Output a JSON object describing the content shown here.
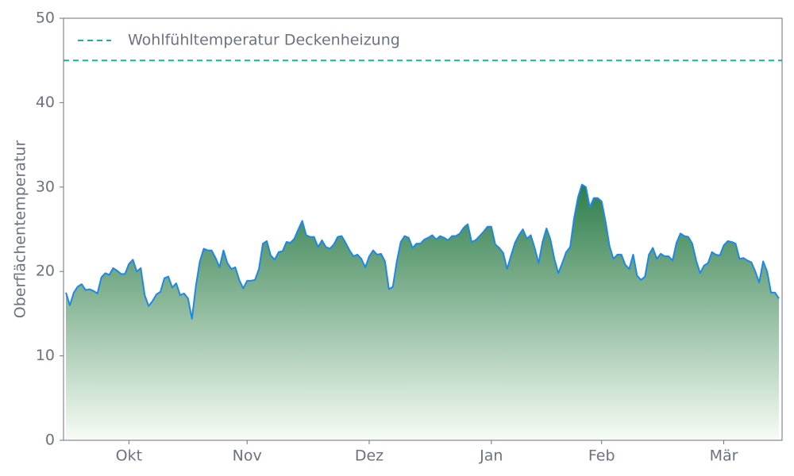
{
  "chart_data": {
    "type": "area",
    "ylabel": "Oberflächentemperatur",
    "ylim": [
      0,
      50
    ],
    "yticks": [
      0,
      10,
      20,
      30,
      40,
      50
    ],
    "grid": false,
    "legend": "upper left",
    "categories": [
      null,
      null,
      null,
      null,
      null,
      null,
      null,
      null,
      null,
      null,
      null,
      null,
      null,
      null,
      null,
      null,
      "Okt",
      null,
      null,
      null,
      null,
      null,
      null,
      null,
      null,
      null,
      null,
      null,
      null,
      null,
      null,
      null,
      null,
      null,
      null,
      null,
      null,
      null,
      null,
      null,
      null,
      null,
      null,
      null,
      null,
      null,
      "Nov",
      null,
      null,
      null,
      null,
      null,
      null,
      null,
      null,
      null,
      null,
      null,
      null,
      null,
      null,
      null,
      null,
      null,
      null,
      null,
      null,
      null,
      null,
      null,
      null,
      null,
      null,
      null,
      null,
      null,
      null,
      "Dez",
      null,
      null,
      null,
      null,
      null,
      null,
      null,
      null,
      null,
      null,
      null,
      null,
      null,
      null,
      null,
      null,
      null,
      null,
      null,
      null,
      null,
      null,
      null,
      null,
      null,
      null,
      null,
      null,
      null,
      null,
      "Jan",
      null,
      null,
      null,
      null,
      null,
      null,
      null,
      null,
      null,
      null,
      null,
      null,
      null,
      null,
      null,
      null,
      null,
      null,
      null,
      null,
      null,
      null,
      null,
      null,
      null,
      null,
      null,
      "Feb",
      null,
      null,
      null,
      null,
      null,
      null,
      null,
      null,
      null,
      null,
      null,
      null,
      null,
      null,
      null,
      null,
      null,
      null,
      null,
      null,
      null,
      null,
      null,
      null,
      null,
      null,
      null,
      null,
      null,
      null,
      "Mär",
      null,
      null,
      null,
      null,
      null,
      null,
      null,
      null,
      null,
      null,
      null,
      null,
      null,
      null
    ],
    "series": [
      {
        "color": "#1e88e5",
        "fill_colors": [
          "#2e7d4a",
          "#f7fcf5"
        ],
        "values": [
          17.5,
          16,
          17.5,
          18.2,
          18.5,
          17.8,
          17.9,
          17.7,
          17.4,
          19.3,
          19.8,
          19.6,
          20.4,
          20.1,
          19.7,
          19.7,
          20.9,
          21.4,
          20,
          20.4,
          17.2,
          15.9,
          16.5,
          17.3,
          17.6,
          19.2,
          19.4,
          18.1,
          18.6,
          17.2,
          17.4,
          16.8,
          14.4,
          18.3,
          21.2,
          22.7,
          22.5,
          22.5,
          21.6,
          20.5,
          22.5,
          21,
          20.3,
          20.5,
          19,
          18,
          18.9,
          18.9,
          19,
          20.3,
          23.3,
          23.6,
          21.9,
          21.4,
          22.3,
          22.4,
          23.5,
          23.4,
          23.9,
          25,
          26,
          24.3,
          24.1,
          24.1,
          22.9,
          23.7,
          22.9,
          22.7,
          23.2,
          24.1,
          24.2,
          23.4,
          22.5,
          21.8,
          22,
          21.5,
          20.5,
          21.8,
          22.5,
          22,
          22.1,
          21.2,
          17.9,
          18.2,
          21.2,
          23.5,
          24.2,
          24,
          22.8,
          23.3,
          23.3,
          23.8,
          24,
          24.3,
          23.8,
          24.2,
          24,
          23.7,
          24.2,
          24.2,
          24.5,
          25.2,
          25.6,
          23.5,
          23.7,
          24.2,
          24.7,
          25.3,
          25.3,
          23.2,
          22.8,
          22.2,
          20.3,
          21.9,
          23.4,
          24.3,
          25,
          23.9,
          24.3,
          22.8,
          21,
          23.5,
          25.1,
          23.8,
          21.5,
          19.8,
          21,
          22.3,
          22.9,
          26.3,
          28.8,
          30.3,
          30,
          27.6,
          28.7,
          28.7,
          28.3,
          25.9,
          23,
          21.5,
          22,
          22,
          20.8,
          20.3,
          22,
          19.5,
          19,
          19.4,
          22,
          22.8,
          21.5,
          22.1,
          21.8,
          21.8,
          21.3,
          23.4,
          24.5,
          24.2,
          24.1,
          23.3,
          21.3,
          19.8,
          20.7,
          21,
          22.3,
          22,
          21.9,
          23.1,
          23.6,
          23.5,
          23.3,
          21.5,
          21.6,
          21.3,
          21.1,
          20,
          18.7,
          21.2,
          20,
          17.5,
          17.5,
          16.8
        ]
      }
    ],
    "reference_lines": [
      {
        "name": "Wohlfühltemperatur Deckenheizung",
        "value": 45,
        "color": "#20b08c",
        "style": "dashed"
      }
    ]
  }
}
